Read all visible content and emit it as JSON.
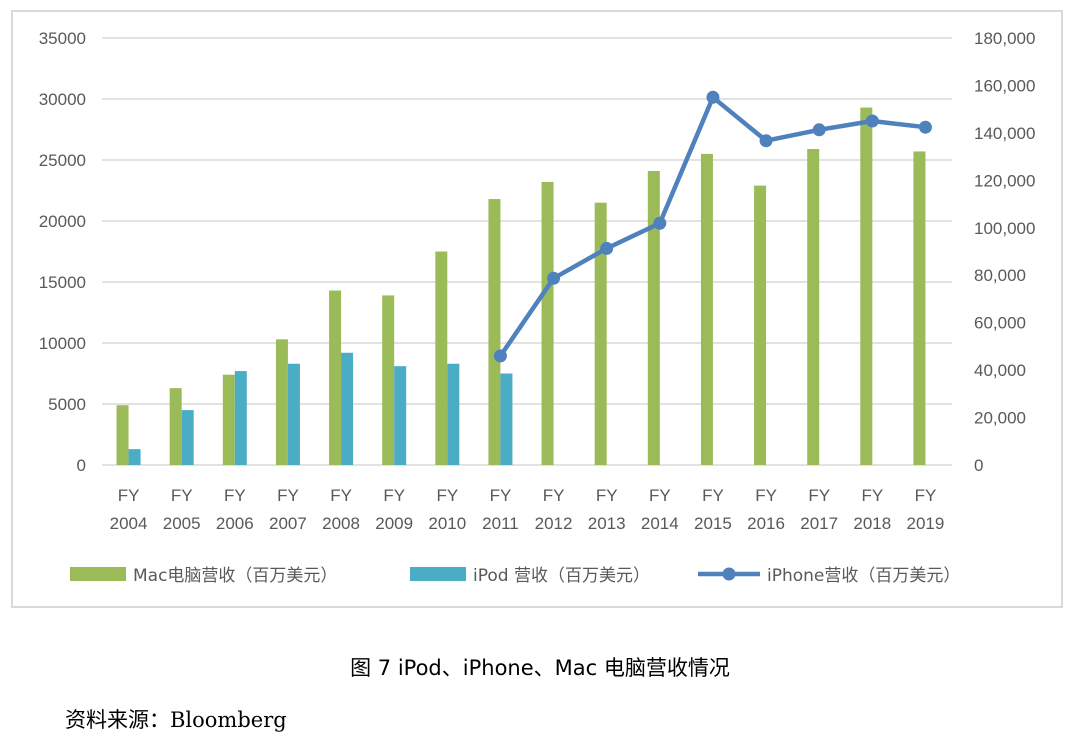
{
  "chart_data": {
    "type": "bar+line",
    "categories": [
      "FY 2004",
      "FY 2005",
      "FY 2006",
      "FY 2007",
      "FY 2008",
      "FY 2009",
      "FY 2010",
      "FY 2011",
      "FY 2012",
      "FY 2013",
      "FY 2014",
      "FY 2015",
      "FY 2016",
      "FY 2017",
      "FY 2018",
      "FY 2019"
    ],
    "category_lines": [
      [
        "FY",
        "2004"
      ],
      [
        "FY",
        "2005"
      ],
      [
        "FY",
        "2006"
      ],
      [
        "FY",
        "2007"
      ],
      [
        "FY",
        "2008"
      ],
      [
        "FY",
        "2009"
      ],
      [
        "FY",
        "2010"
      ],
      [
        "FY",
        "2011"
      ],
      [
        "FY",
        "2012"
      ],
      [
        "FY",
        "2013"
      ],
      [
        "FY",
        "2014"
      ],
      [
        "FY",
        "2015"
      ],
      [
        "FY",
        "2016"
      ],
      [
        "FY",
        "2017"
      ],
      [
        "FY",
        "2018"
      ],
      [
        "FY",
        "2019"
      ]
    ],
    "series": [
      {
        "name": "Mac电脑营收（百万美元）",
        "type": "bar",
        "axis": "left",
        "color": "#9bbb59",
        "values": [
          4900,
          6300,
          7400,
          10300,
          14300,
          13900,
          17500,
          21800,
          23200,
          21500,
          24100,
          25500,
          22900,
          25900,
          29300,
          25700
        ]
      },
      {
        "name": "iPod 营收（百万美元）",
        "type": "bar",
        "axis": "left",
        "color": "#4bacc6",
        "values": [
          1300,
          4500,
          7700,
          8300,
          9200,
          8100,
          8300,
          7500,
          null,
          null,
          null,
          null,
          null,
          null,
          null,
          null
        ]
      },
      {
        "name": "iPhone营收（百万美元）",
        "type": "line",
        "axis": "right",
        "color": "#4f81bd",
        "values": [
          null,
          null,
          null,
          null,
          null,
          null,
          null,
          46000,
          78700,
          91300,
          101900,
          155000,
          136700,
          141300,
          145000,
          142400
        ]
      }
    ],
    "y_left": {
      "min": 0,
      "max": 35000,
      "ticks": [
        "0",
        "5000",
        "10000",
        "15000",
        "20000",
        "25000",
        "30000",
        "35000"
      ]
    },
    "y_right": {
      "min": 0,
      "max": 180000,
      "ticks": [
        "0",
        "20,000",
        "40,000",
        "60,000",
        "80,000",
        "100,000",
        "120,000",
        "140,000",
        "160,000",
        "180,000"
      ]
    },
    "grid": true,
    "legend_position": "bottom"
  },
  "caption": "图  7 iPod、iPhone、Mac 电脑营收情况",
  "source": "资料来源：Bloomberg"
}
